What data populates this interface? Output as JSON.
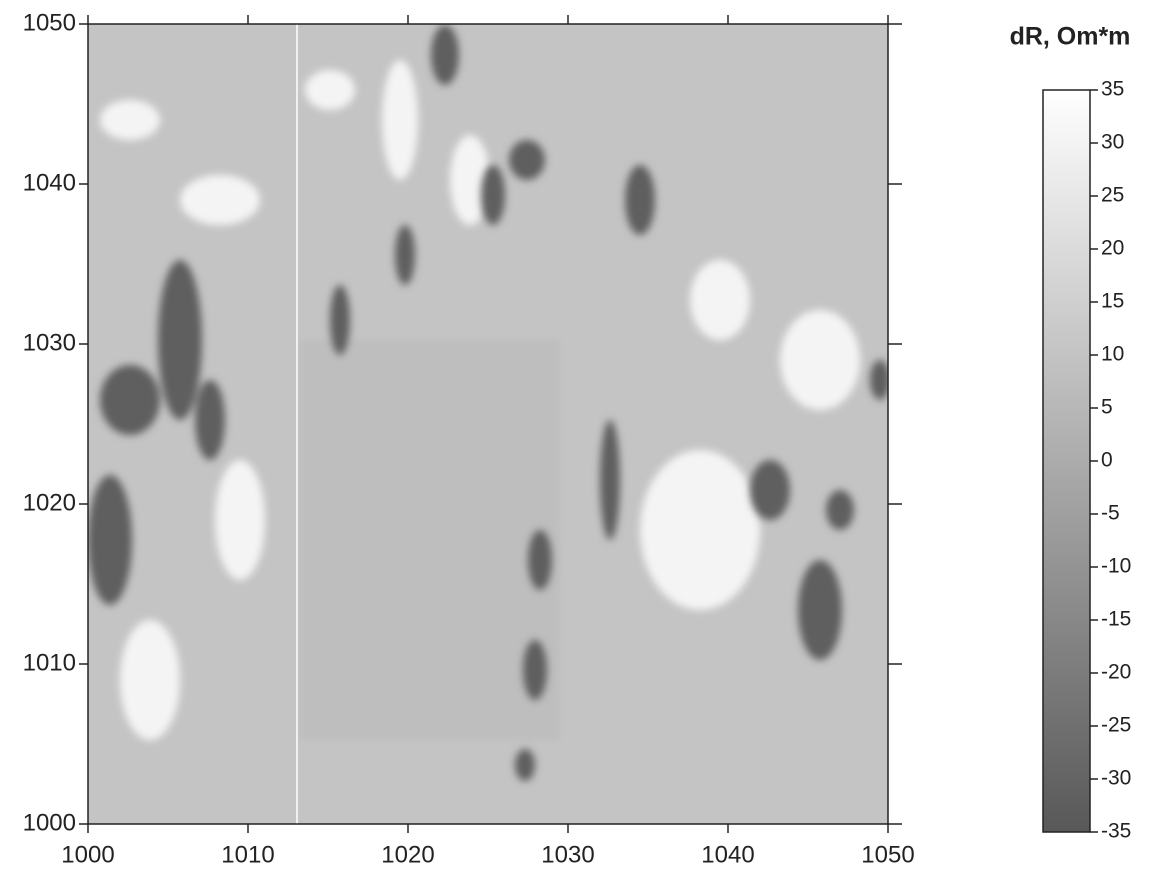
{
  "chart_data": {
    "type": "heatmap",
    "title": "dR, Om*m",
    "xlim": [
      1000,
      1050
    ],
    "ylim": [
      1000,
      1050
    ],
    "xticks": [
      1000,
      1010,
      1020,
      1030,
      1040,
      1050
    ],
    "yticks": [
      1000,
      1010,
      1020,
      1030,
      1040,
      1050
    ],
    "colorbar": {
      "lim": [
        -35,
        35
      ],
      "ticks": [
        35,
        30,
        25,
        20,
        15,
        10,
        5,
        0,
        -5,
        -10,
        -15,
        -20,
        -25,
        -30,
        -35
      ],
      "colors": [
        "#585858",
        "#ffffff"
      ]
    }
  }
}
